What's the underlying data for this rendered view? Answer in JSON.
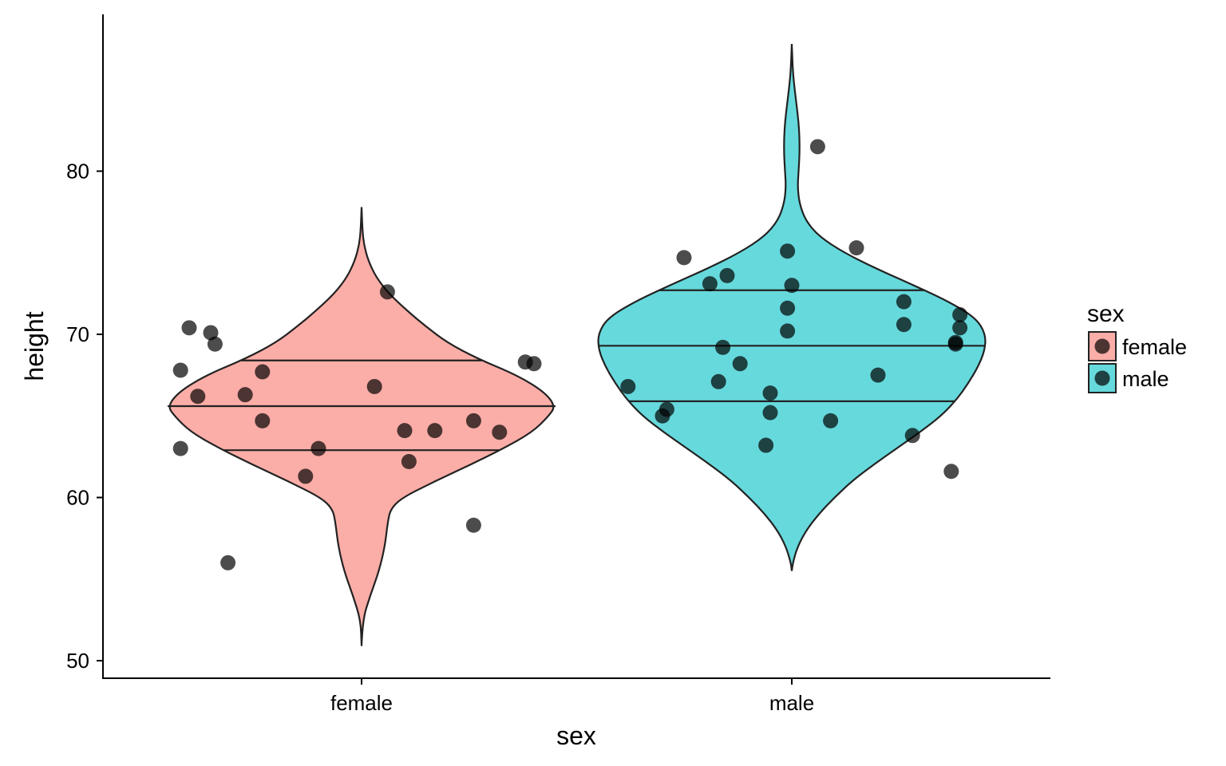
{
  "chart_data": {
    "type": "violin",
    "xlabel": "sex",
    "ylabel": "height",
    "categories": [
      "female",
      "male"
    ],
    "yticks": [
      50,
      60,
      70,
      80
    ],
    "ylim": [
      49,
      89
    ],
    "grid": false,
    "legend": {
      "title": "sex",
      "position": "right",
      "entries": [
        {
          "label": "female",
          "color": "#F8766D"
        },
        {
          "label": "male",
          "color": "#00BFC4"
        }
      ]
    },
    "violins": [
      {
        "category": "female",
        "color": "#F8766D",
        "quantiles": [
          62.9,
          65.6,
          68.4
        ],
        "density": [
          [
            50.9,
            0.0
          ],
          [
            52.5,
            0.005
          ],
          [
            54.0,
            0.045
          ],
          [
            55.5,
            0.09
          ],
          [
            57.0,
            0.12
          ],
          [
            58.5,
            0.135
          ],
          [
            59.3,
            0.15
          ],
          [
            60.0,
            0.21
          ],
          [
            61.0,
            0.38
          ],
          [
            62.0,
            0.56
          ],
          [
            63.0,
            0.73
          ],
          [
            64.0,
            0.88
          ],
          [
            65.0,
            0.965
          ],
          [
            65.6,
            1.0
          ],
          [
            66.5,
            0.94
          ],
          [
            67.5,
            0.8
          ],
          [
            68.5,
            0.6
          ],
          [
            69.5,
            0.44
          ],
          [
            70.5,
            0.33
          ],
          [
            71.5,
            0.23
          ],
          [
            72.5,
            0.14
          ],
          [
            73.5,
            0.075
          ],
          [
            74.5,
            0.035
          ],
          [
            75.5,
            0.012
          ],
          [
            76.5,
            0.004
          ],
          [
            77.8,
            0.0
          ]
        ],
        "points": [
          [
            -0.4,
            70.4
          ],
          [
            -0.35,
            70.1
          ],
          [
            -0.34,
            69.4
          ],
          [
            -0.42,
            67.8
          ],
          [
            -0.38,
            66.2
          ],
          [
            -0.27,
            66.3
          ],
          [
            -0.23,
            67.7
          ],
          [
            -0.23,
            64.7
          ],
          [
            -0.42,
            63.0
          ],
          [
            -0.1,
            63.0
          ],
          [
            -0.13,
            61.3
          ],
          [
            -0.31,
            56.0
          ],
          [
            0.06,
            72.6
          ],
          [
            0.03,
            66.8
          ],
          [
            0.1,
            64.1
          ],
          [
            0.17,
            64.1
          ],
          [
            0.11,
            62.2
          ],
          [
            0.26,
            64.7
          ],
          [
            0.32,
            64.0
          ],
          [
            0.38,
            68.3
          ],
          [
            0.4,
            68.2
          ],
          [
            0.26,
            58.3
          ]
        ]
      },
      {
        "category": "male",
        "color": "#00BFC4",
        "quantiles": [
          65.9,
          69.3,
          72.7
        ],
        "density": [
          [
            55.5,
            0.0
          ],
          [
            56.0,
            0.005
          ],
          [
            57.0,
            0.03
          ],
          [
            58.0,
            0.075
          ],
          [
            59.0,
            0.14
          ],
          [
            60.0,
            0.22
          ],
          [
            61.0,
            0.31
          ],
          [
            62.0,
            0.42
          ],
          [
            63.0,
            0.54
          ],
          [
            64.0,
            0.66
          ],
          [
            65.0,
            0.77
          ],
          [
            66.0,
            0.85
          ],
          [
            67.0,
            0.91
          ],
          [
            68.0,
            0.96
          ],
          [
            69.0,
            0.995
          ],
          [
            70.0,
            1.0
          ],
          [
            71.0,
            0.95
          ],
          [
            72.0,
            0.81
          ],
          [
            73.0,
            0.63
          ],
          [
            74.0,
            0.44
          ],
          [
            75.0,
            0.27
          ],
          [
            76.0,
            0.14
          ],
          [
            77.0,
            0.07
          ],
          [
            78.0,
            0.04
          ],
          [
            79.0,
            0.03
          ],
          [
            80.0,
            0.035
          ],
          [
            81.0,
            0.04
          ],
          [
            82.0,
            0.04
          ],
          [
            83.0,
            0.035
          ],
          [
            84.0,
            0.025
          ],
          [
            85.0,
            0.015
          ],
          [
            86.0,
            0.006
          ],
          [
            87.8,
            0.0
          ]
        ],
        "points": [
          [
            0.06,
            81.5
          ],
          [
            -0.25,
            74.7
          ],
          [
            0.15,
            75.3
          ],
          [
            -0.01,
            75.1
          ],
          [
            -0.15,
            73.6
          ],
          [
            -0.19,
            73.1
          ],
          [
            0.0,
            73.0
          ],
          [
            -0.01,
            71.6
          ],
          [
            0.26,
            72.0
          ],
          [
            0.26,
            70.6
          ],
          [
            -0.01,
            70.2
          ],
          [
            0.39,
            71.2
          ],
          [
            0.39,
            70.4
          ],
          [
            0.38,
            69.4
          ],
          [
            0.38,
            69.5
          ],
          [
            -0.16,
            69.2
          ],
          [
            -0.12,
            68.2
          ],
          [
            -0.17,
            67.1
          ],
          [
            0.2,
            67.5
          ],
          [
            -0.38,
            66.8
          ],
          [
            -0.29,
            65.4
          ],
          [
            -0.3,
            65.0
          ],
          [
            -0.05,
            66.4
          ],
          [
            -0.05,
            65.2
          ],
          [
            0.09,
            64.7
          ],
          [
            -0.06,
            63.2
          ],
          [
            0.28,
            63.8
          ],
          [
            0.37,
            61.6
          ]
        ]
      }
    ]
  }
}
